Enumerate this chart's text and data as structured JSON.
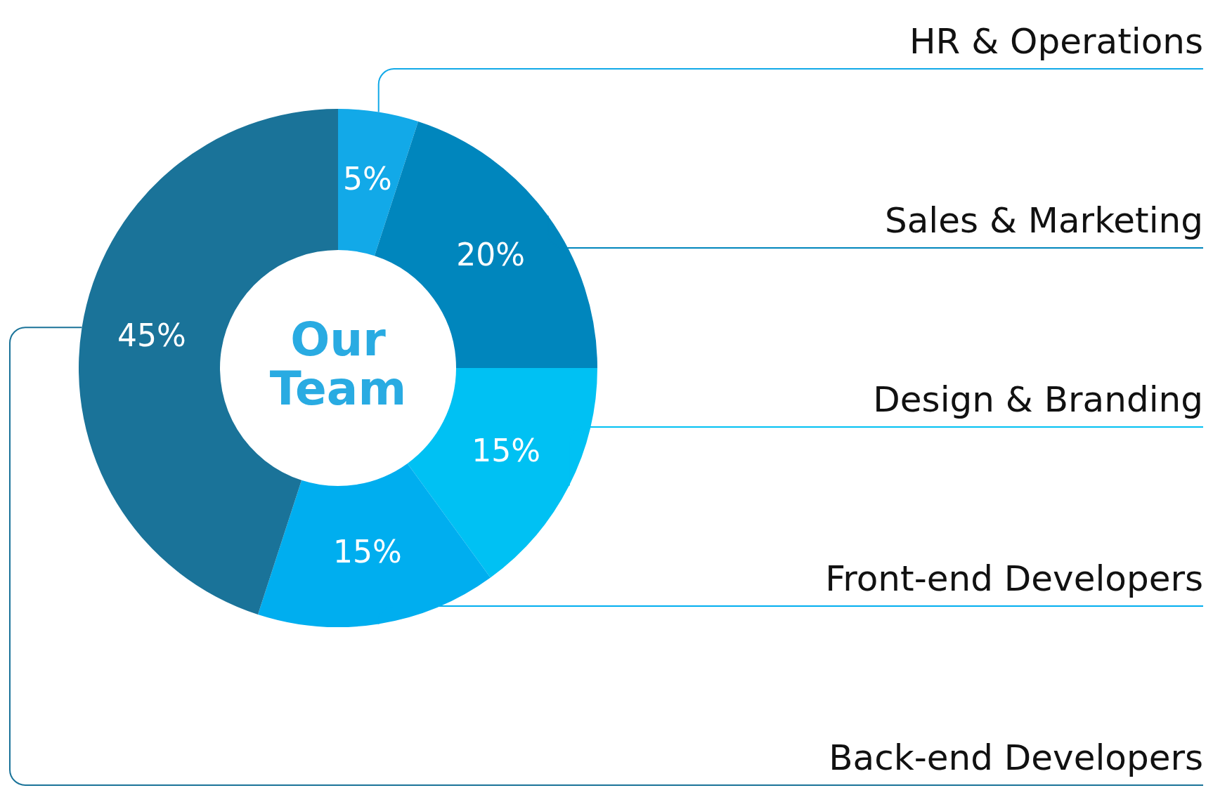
{
  "chart_data": {
    "type": "donut",
    "title": "Our Team",
    "categories": [
      "HR & Operations",
      "Sales & Marketing",
      "Design & Branding",
      "Front-end Developers",
      "Back-end Developers"
    ],
    "values": [
      5,
      20,
      15,
      15,
      45
    ],
    "value_labels": [
      "5%",
      "20%",
      "15%",
      "15%",
      "45%"
    ],
    "colors": [
      "#12a9e8",
      "#0086bd",
      "#00c1f3",
      "#00aeef",
      "#1a7399"
    ]
  }
}
